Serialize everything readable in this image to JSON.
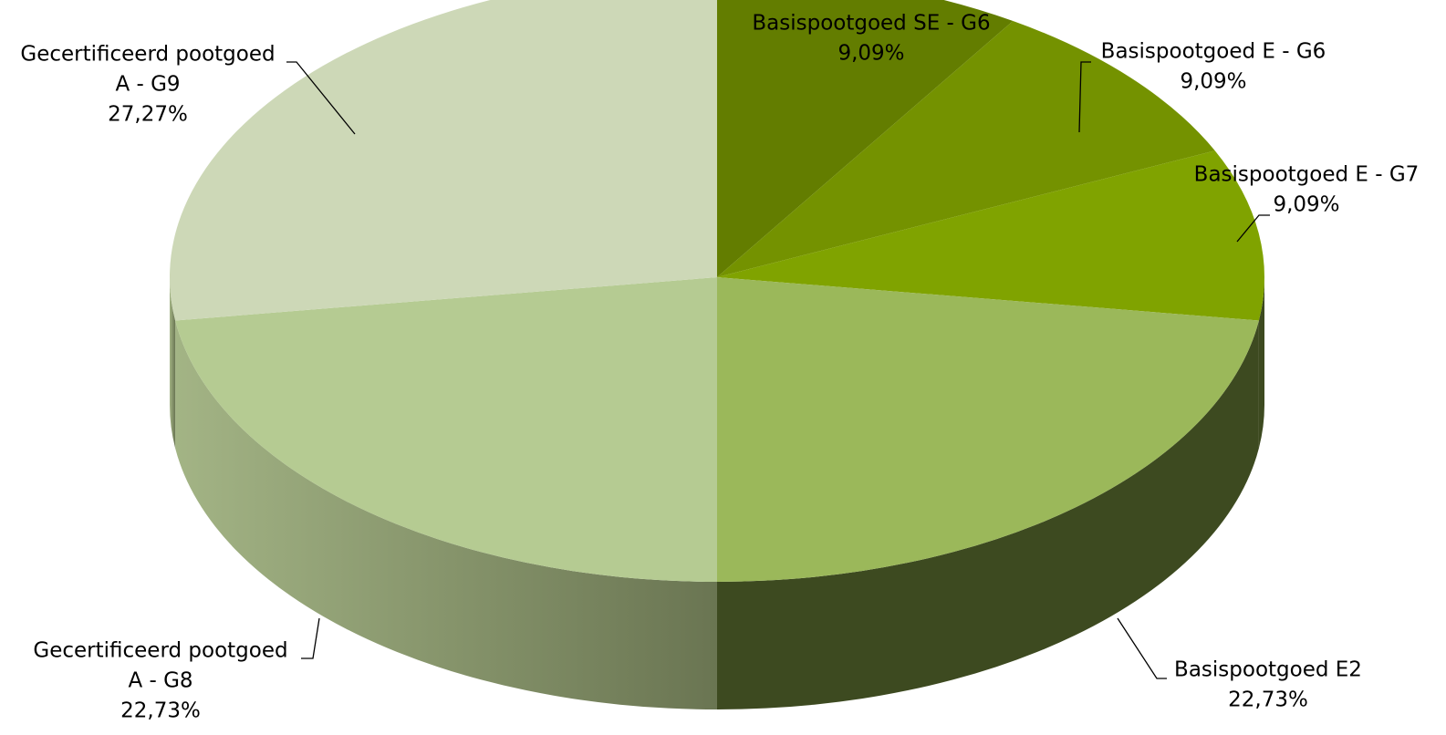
{
  "chart_data": {
    "type": "pie",
    "style": "3d",
    "start_angle_deg": 90,
    "direction": "clockwise",
    "slices": [
      {
        "name_lines": [
          "Basispootgoed SE - G6"
        ],
        "percent_label": "9,09%",
        "value": 9.09,
        "color": "#637D00"
      },
      {
        "name_lines": [
          "Basispootgoed E - G6"
        ],
        "percent_label": "9,09%",
        "value": 9.09,
        "color": "#749200"
      },
      {
        "name_lines": [
          "Basispootgoed E - G7"
        ],
        "percent_label": "9,09%",
        "value": 9.09,
        "color": "#80A300"
      },
      {
        "name_lines": [
          "Basispootgoed E2"
        ],
        "percent_label": "22,73%",
        "value": 22.73,
        "color": "#9BB85A"
      },
      {
        "name_lines": [
          "Gecertificeerd pootgoed",
          "A - G8"
        ],
        "percent_label": "22,73%",
        "value": 22.73,
        "color": "#B5CB92"
      },
      {
        "name_lines": [
          "Gecertificeerd pootgoed",
          "A - G9"
        ],
        "percent_label": "27,27%",
        "value": 27.27,
        "color": "#CDD8B7"
      }
    ],
    "side_colors": {
      "right": "#3D4A20",
      "left_dark": "#6A7552",
      "left_light": "#A3B485"
    },
    "legend": "none"
  }
}
